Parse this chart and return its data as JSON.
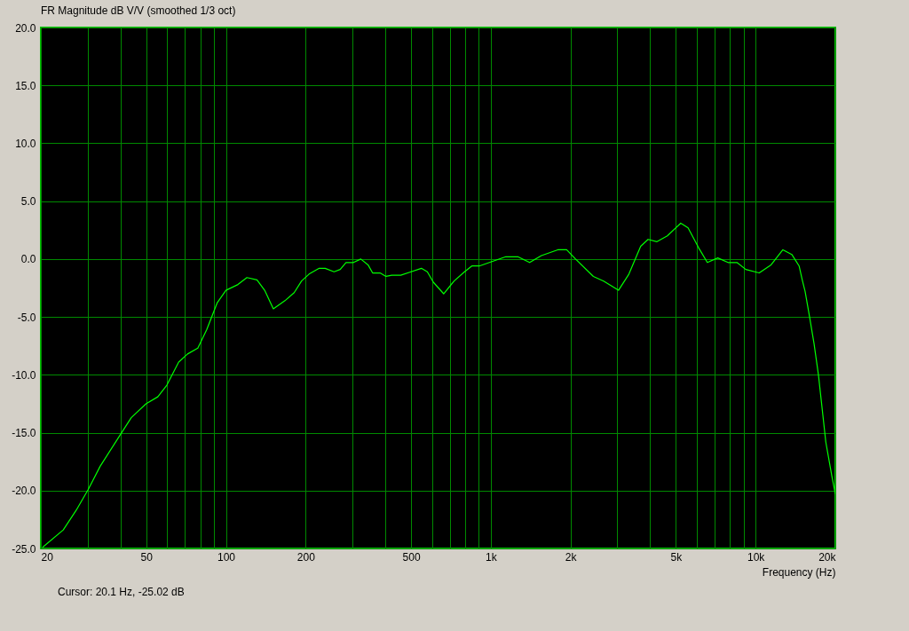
{
  "chart_data": {
    "type": "line",
    "title": "FR Magnitude dB V/V (smoothed 1/3 oct)",
    "xlabel": "Frequency (Hz)",
    "annotations": [
      "Cursor: 20.1 Hz, -25.02 dB"
    ],
    "log": "x",
    "grid": true,
    "marker": "none",
    "line_style": "solid",
    "xlim": [
      20,
      20000
    ],
    "xticks": [
      20,
      {
        "value": 30,
        "label": null
      },
      {
        "value": 40,
        "label": null
      },
      50,
      {
        "value": 60,
        "label": null
      },
      {
        "value": 70,
        "label": null
      },
      {
        "value": 80,
        "label": null
      },
      {
        "value": 90,
        "label": null
      },
      100,
      200,
      {
        "value": 300,
        "label": null
      },
      {
        "value": 400,
        "label": null
      },
      500,
      {
        "value": 600,
        "label": null
      },
      {
        "value": 700,
        "label": null
      },
      {
        "value": 800,
        "label": null
      },
      {
        "value": 900,
        "label": null
      },
      {
        "value": 1000,
        "label": "1k"
      },
      {
        "value": 2000,
        "label": "2k"
      },
      {
        "value": 3000,
        "label": null
      },
      {
        "value": 4000,
        "label": null
      },
      {
        "value": 5000,
        "label": "5k"
      },
      {
        "value": 6000,
        "label": null
      },
      {
        "value": 7000,
        "label": null
      },
      {
        "value": 8000,
        "label": null
      },
      {
        "value": 9000,
        "label": null
      },
      {
        "value": 10000,
        "label": "10k"
      },
      {
        "value": 20000,
        "label": "20k"
      }
    ],
    "ylim": [
      -25,
      20
    ],
    "yticks": [
      {
        "value": -25,
        "label": "-25.0"
      },
      {
        "value": -20,
        "label": "-20.0"
      },
      {
        "value": -15,
        "label": "-15.0"
      },
      {
        "value": -10,
        "label": "-10.0"
      },
      {
        "value": -5,
        "label": "-5.0"
      },
      {
        "value": 0,
        "label": "0.0"
      },
      {
        "value": 5,
        "label": "5.0"
      },
      {
        "value": 10,
        "label": "10.0"
      },
      {
        "value": 15,
        "label": "15.0"
      },
      {
        "value": 20,
        "label": "20.0"
      }
    ],
    "series": [
      {
        "color": "#00ff00",
        "x": [
          20.3,
          24.3,
          27.2,
          30.2,
          33.5,
          40.1,
          43.9,
          49.9,
          55.3,
          59.8,
          66.3,
          71.6,
          78.3,
          84.6,
          92.6,
          100,
          111,
          120,
          131,
          140,
          151,
          167,
          181,
          193,
          206,
          225,
          237,
          256,
          270,
          284,
          303,
          323,
          344,
          358,
          382,
          402,
          423,
          457,
          500,
          547,
          576,
          607,
          664,
          727,
          796,
          848,
          905,
          1016,
          1140,
          1265,
          1402,
          1553,
          1791,
          1934,
          2090,
          2440,
          2668,
          3036,
          3324,
          3682,
          3926,
          4242,
          4642,
          5216,
          5560,
          6084,
          6574,
          7196,
          7872,
          8504,
          9184,
          10316,
          11440,
          12678,
          13694,
          14600,
          15000,
          15380,
          15990,
          16620,
          17270,
          17950,
          18410,
          19390,
          20000
        ],
        "values": [
          -24.9,
          -23.4,
          -21.7,
          -19.9,
          -17.9,
          -15.1,
          -13.7,
          -12.5,
          -11.9,
          -10.9,
          -8.9,
          -8.2,
          -7.7,
          -6.1,
          -3.8,
          -2.7,
          -2.2,
          -1.6,
          -1.8,
          -2.7,
          -4.3,
          -3.6,
          -2.9,
          -1.9,
          -1.3,
          -0.8,
          -0.8,
          -1.1,
          -0.9,
          -0.3,
          -0.3,
          0.0,
          -0.5,
          -1.2,
          -1.2,
          -1.5,
          -1.4,
          -1.4,
          -1.1,
          -0.8,
          -1.1,
          -2.0,
          -3.0,
          -1.9,
          -1.1,
          -0.6,
          -0.6,
          -0.2,
          0.2,
          0.2,
          -0.3,
          0.3,
          0.8,
          0.8,
          0.0,
          -1.5,
          -1.9,
          -2.7,
          -1.3,
          1.1,
          1.7,
          1.5,
          2.0,
          3.1,
          2.7,
          1.0,
          -0.3,
          0.1,
          -0.3,
          -0.3,
          -0.9,
          -1.2,
          -0.5,
          0.8,
          0.4,
          -0.6,
          -1.8,
          -2.8,
          -5.0,
          -7.3,
          -10.0,
          -13.5,
          -15.8,
          -18.7,
          -20.3
        ]
      }
    ]
  }
}
